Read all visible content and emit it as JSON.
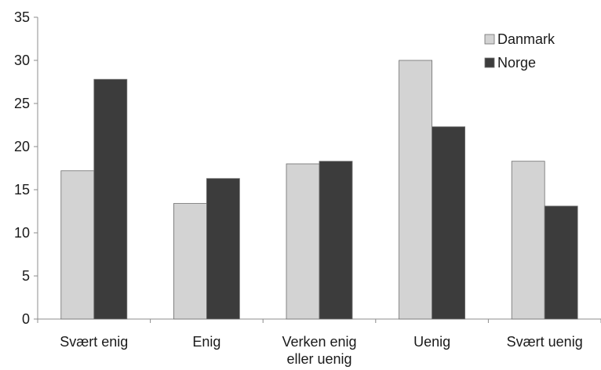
{
  "chart_data": {
    "type": "bar",
    "title": "",
    "xlabel": "",
    "ylabel": "",
    "ylim": [
      0,
      35
    ],
    "yticks": [
      0,
      5,
      10,
      15,
      20,
      25,
      30,
      35
    ],
    "grid": false,
    "legend_position": "top-right",
    "categories": [
      [
        "Svært enig"
      ],
      [
        "Enig"
      ],
      [
        "Verken enig",
        "eller uenig"
      ],
      [
        "Uenig"
      ],
      [
        "Svært uenig"
      ]
    ],
    "series": [
      {
        "name": "Danmark",
        "color": "#d3d3d3",
        "values": [
          17.2,
          13.4,
          18.0,
          30.0,
          18.3
        ]
      },
      {
        "name": "Norge",
        "color": "#3c3c3c",
        "values": [
          27.8,
          16.3,
          18.3,
          22.3,
          13.1
        ]
      }
    ]
  }
}
